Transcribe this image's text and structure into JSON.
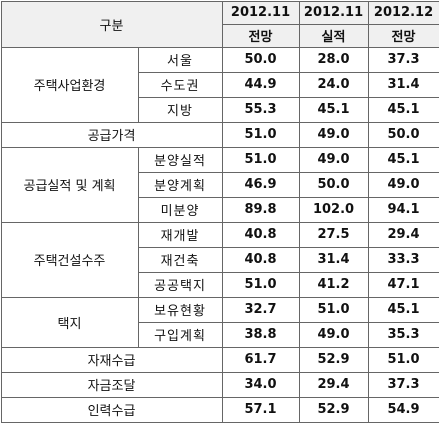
{
  "table": {
    "header": {
      "category": "구분",
      "columns": [
        {
          "period": "2012.11",
          "kind": "전망"
        },
        {
          "period": "2012.11",
          "kind": "실적"
        },
        {
          "period": "2012.12",
          "kind": "전망"
        }
      ]
    },
    "groups": [
      {
        "label": "주택사업환경",
        "rows": [
          {
            "label": "서울",
            "values": [
              "50.0",
              "28.0",
              "37.3"
            ]
          },
          {
            "label": "수도권",
            "values": [
              "44.9",
              "24.0",
              "31.4"
            ]
          },
          {
            "label": "지방",
            "values": [
              "55.3",
              "45.1",
              "45.1"
            ]
          }
        ]
      },
      {
        "label": "공급가격",
        "values": [
          "51.0",
          "49.0",
          "50.0"
        ]
      },
      {
        "label": "공급실적 및 계획",
        "rows": [
          {
            "label": "분양실적",
            "values": [
              "51.0",
              "49.0",
              "45.1"
            ]
          },
          {
            "label": "분양계획",
            "values": [
              "46.9",
              "50.0",
              "49.0"
            ]
          },
          {
            "label": "미분양",
            "values": [
              "89.8",
              "102.0",
              "94.1"
            ]
          }
        ]
      },
      {
        "label": "주택건설수주",
        "rows": [
          {
            "label": "재개발",
            "values": [
              "40.8",
              "27.5",
              "29.4"
            ]
          },
          {
            "label": "재건축",
            "values": [
              "40.8",
              "31.4",
              "33.3"
            ]
          },
          {
            "label": "공공택지",
            "values": [
              "51.0",
              "41.2",
              "47.1"
            ]
          }
        ]
      },
      {
        "label": "택지",
        "rows": [
          {
            "label": "보유현황",
            "values": [
              "32.7",
              "51.0",
              "45.1"
            ]
          },
          {
            "label": "구입계획",
            "values": [
              "38.8",
              "49.0",
              "35.3"
            ]
          }
        ]
      },
      {
        "label": "자재수급",
        "values": [
          "61.7",
          "52.9",
          "51.0"
        ]
      },
      {
        "label": "자금조달",
        "values": [
          "34.0",
          "29.4",
          "37.3"
        ]
      },
      {
        "label": "인력수급",
        "values": [
          "57.1",
          "52.9",
          "54.9"
        ]
      }
    ]
  }
}
